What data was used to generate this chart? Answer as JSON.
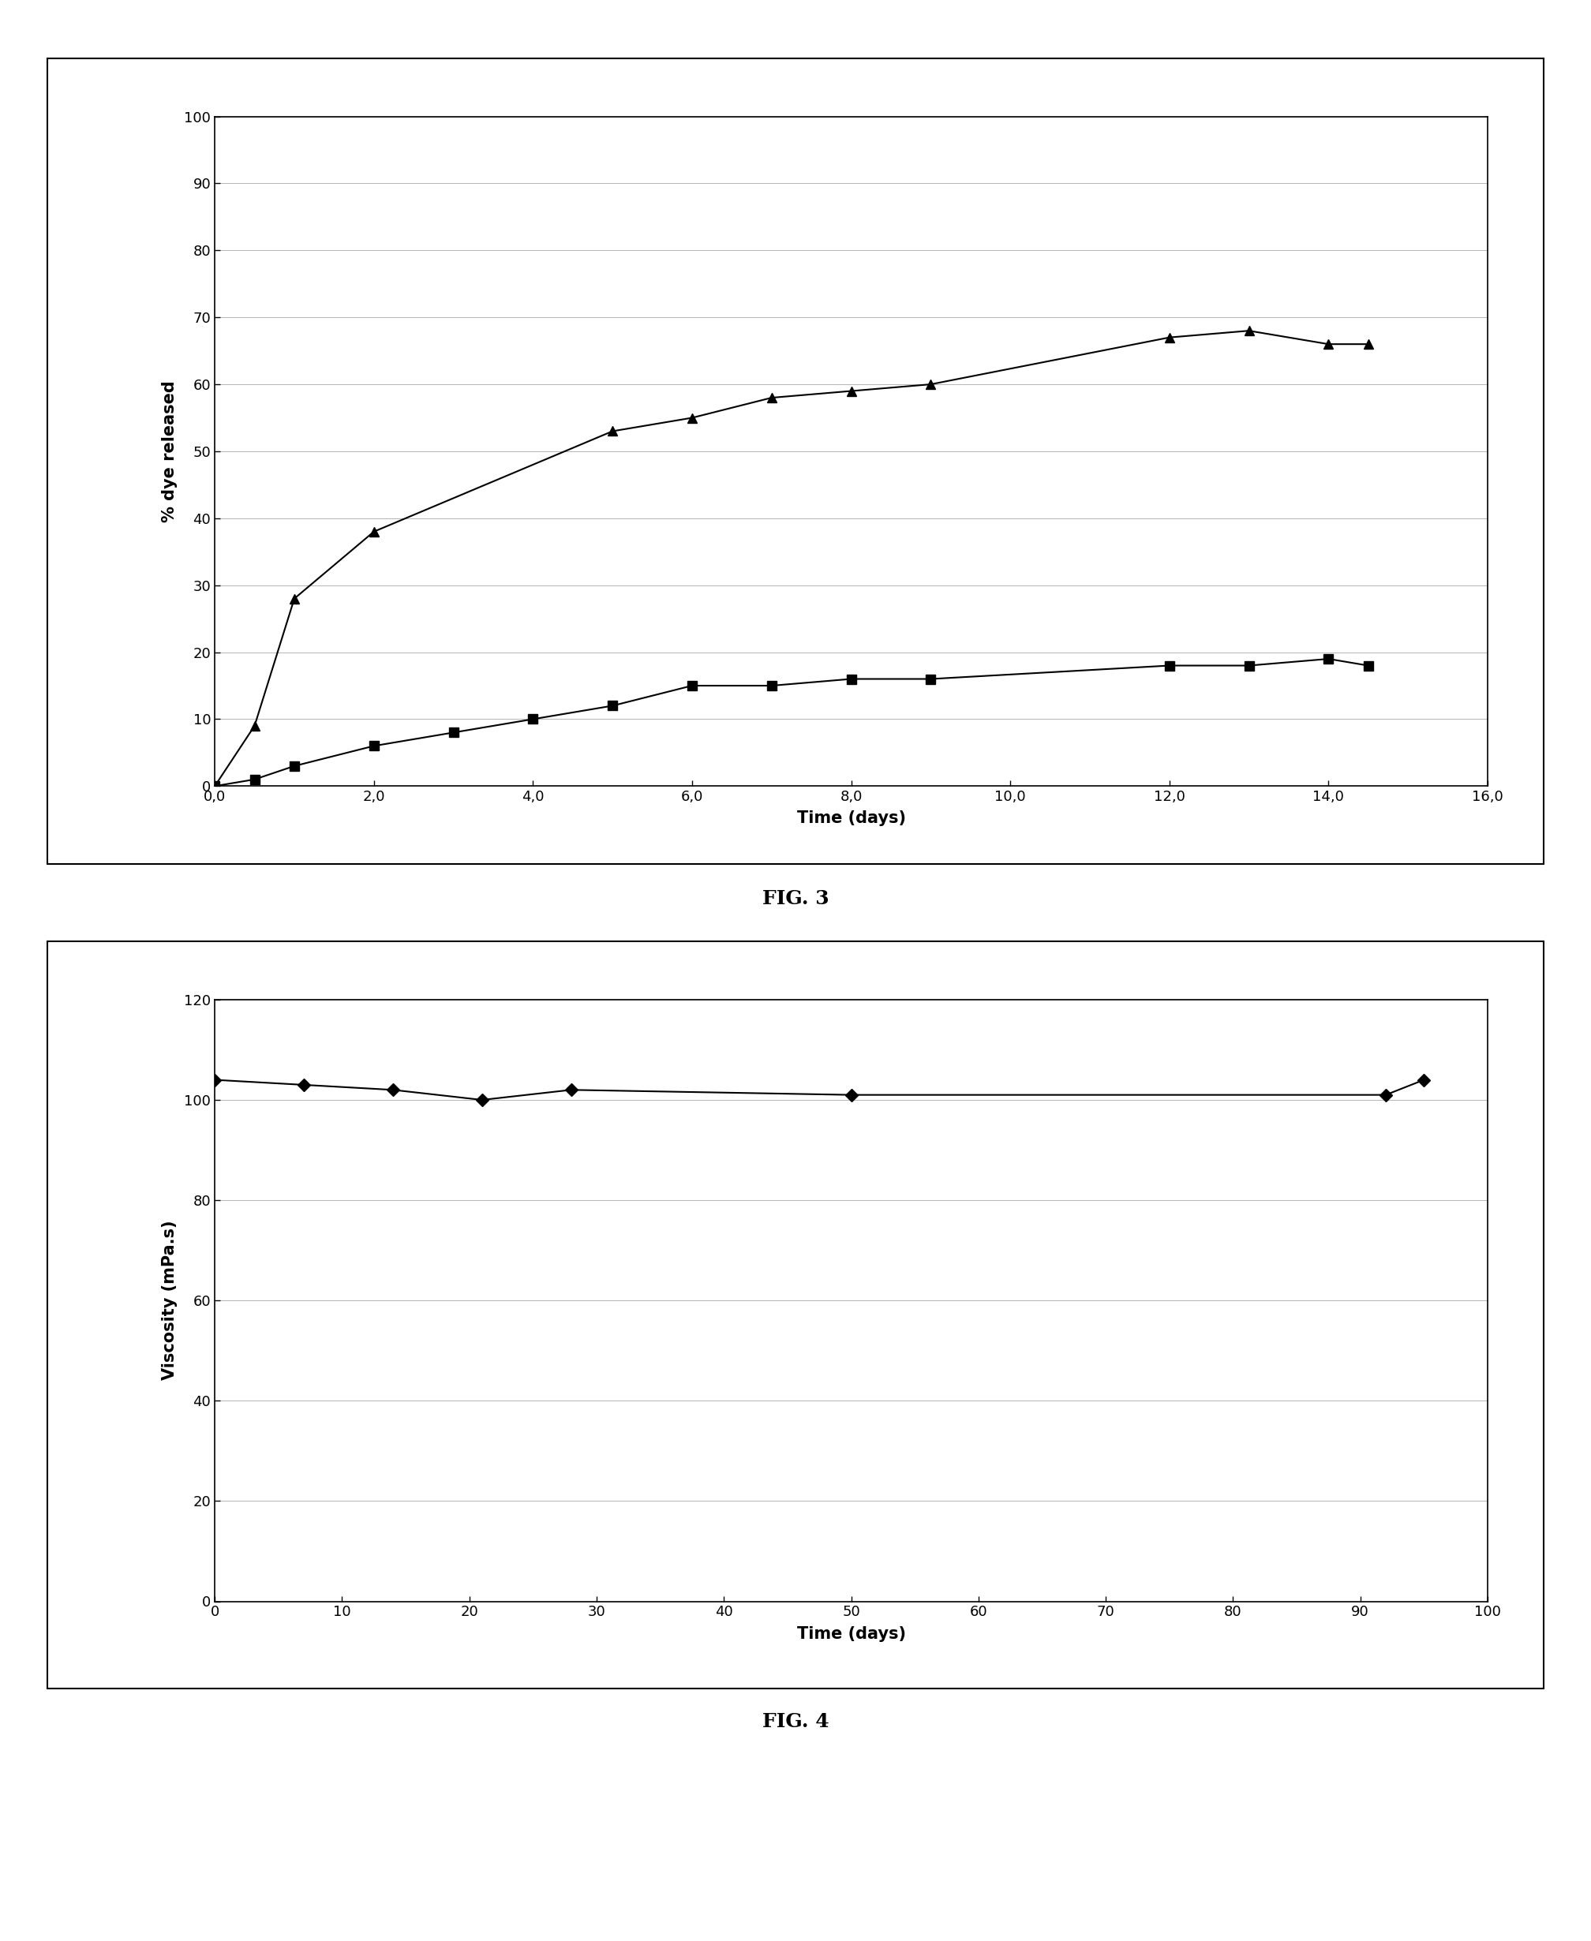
{
  "fig3": {
    "triangle_x": [
      0,
      0.5,
      1.0,
      2.0,
      5.0,
      6.0,
      7.0,
      8.0,
      9.0,
      12.0,
      13.0,
      14.0,
      14.5
    ],
    "triangle_y": [
      0,
      9,
      28,
      38,
      53,
      55,
      58,
      59,
      60,
      67,
      68,
      66,
      66
    ],
    "square_x": [
      0,
      0.5,
      1.0,
      2.0,
      3.0,
      4.0,
      5.0,
      6.0,
      7.0,
      8.0,
      9.0,
      12.0,
      13.0,
      14.0,
      14.5
    ],
    "square_y": [
      0,
      1,
      3,
      6,
      8,
      10,
      12,
      15,
      15,
      16,
      16,
      18,
      18,
      19,
      18
    ],
    "xlabel": "Time (days)",
    "ylabel": "% dye released",
    "fig_label": "FIG. 3",
    "xlim": [
      0,
      16
    ],
    "ylim": [
      0,
      100
    ],
    "xticks": [
      0.0,
      2.0,
      4.0,
      6.0,
      8.0,
      10.0,
      12.0,
      14.0,
      16.0
    ],
    "yticks": [
      0,
      10,
      20,
      30,
      40,
      50,
      60,
      70,
      80,
      90,
      100
    ]
  },
  "fig4": {
    "diamond_x": [
      0,
      7,
      14,
      21,
      28,
      50,
      92,
      95
    ],
    "diamond_y": [
      104,
      103,
      102,
      100,
      102,
      101,
      101,
      104
    ],
    "xlabel": "Time (days)",
    "ylabel": "Viscosity (mPa.s)",
    "fig_label": "FIG. 4",
    "xlim": [
      0,
      100
    ],
    "ylim": [
      0,
      120
    ],
    "xticks": [
      0,
      10,
      20,
      30,
      40,
      50,
      60,
      70,
      80,
      90,
      100
    ],
    "yticks": [
      0,
      20,
      40,
      60,
      80,
      100,
      120
    ]
  },
  "background_color": "#ffffff",
  "line_color": "#000000",
  "marker_color": "#000000"
}
